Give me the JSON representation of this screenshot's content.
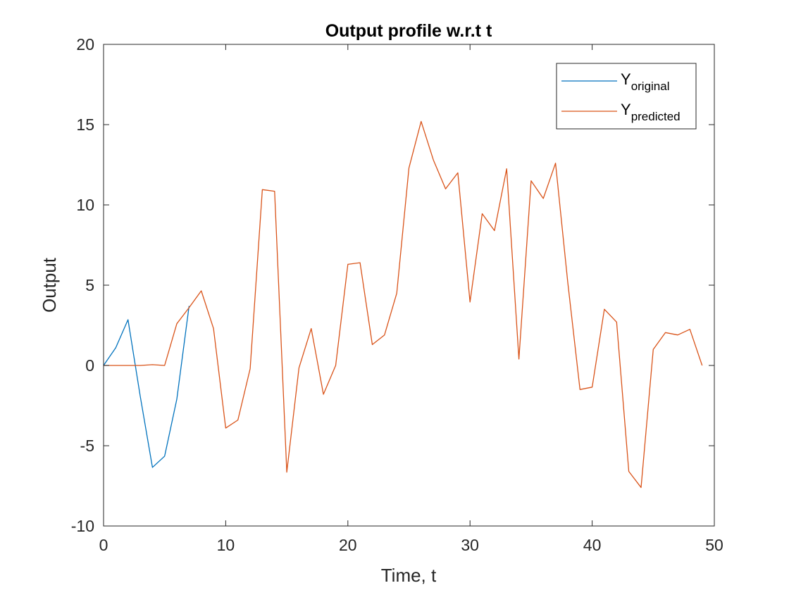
{
  "chart_data": {
    "type": "line",
    "title": "Output profile w.r.t t",
    "xlabel": "Time, t",
    "ylabel": "Output",
    "xlim": [
      0,
      50
    ],
    "ylim": [
      -10,
      20
    ],
    "xticks": [
      0,
      10,
      20,
      30,
      40,
      50
    ],
    "yticks": [
      -10,
      -5,
      0,
      5,
      10,
      15,
      20
    ],
    "grid": false,
    "legend_position": "top-right",
    "series": [
      {
        "name": "Y",
        "subscript": "original",
        "color": "#0072BD",
        "x": [
          0,
          1,
          2,
          3,
          4,
          5,
          6,
          7
        ],
        "y": [
          0,
          1.1,
          2.85,
          -1.9,
          -6.35,
          -5.65,
          -2.1,
          3.7
        ]
      },
      {
        "name": "Y",
        "subscript": "predicted",
        "color": "#D95319",
        "x": [
          0,
          1,
          2,
          3,
          4,
          5,
          6,
          7,
          8,
          9,
          10,
          11,
          12,
          13,
          14,
          15,
          16,
          17,
          18,
          19,
          20,
          21,
          22,
          23,
          24,
          25,
          26,
          27,
          28,
          29,
          30,
          31,
          32,
          33,
          34,
          35,
          36,
          37,
          38,
          39,
          40,
          41,
          42,
          43,
          44,
          45,
          46,
          47,
          48,
          49
        ],
        "y": [
          0,
          0,
          0,
          0,
          0.05,
          0,
          2.6,
          3.6,
          4.65,
          2.3,
          -3.9,
          -3.4,
          -0.2,
          10.95,
          10.85,
          -6.65,
          -0.15,
          2.3,
          -1.8,
          0,
          6.3,
          6.4,
          1.3,
          1.9,
          4.5,
          12.3,
          15.2,
          12.8,
          11,
          12,
          3.95,
          9.45,
          8.4,
          12.25,
          0.4,
          11.5,
          10.4,
          12.6,
          5.2,
          -1.5,
          -1.35,
          3.5,
          2.7,
          -6.6,
          -7.6,
          1,
          2.05,
          1.9,
          2.25,
          0
        ]
      }
    ]
  }
}
